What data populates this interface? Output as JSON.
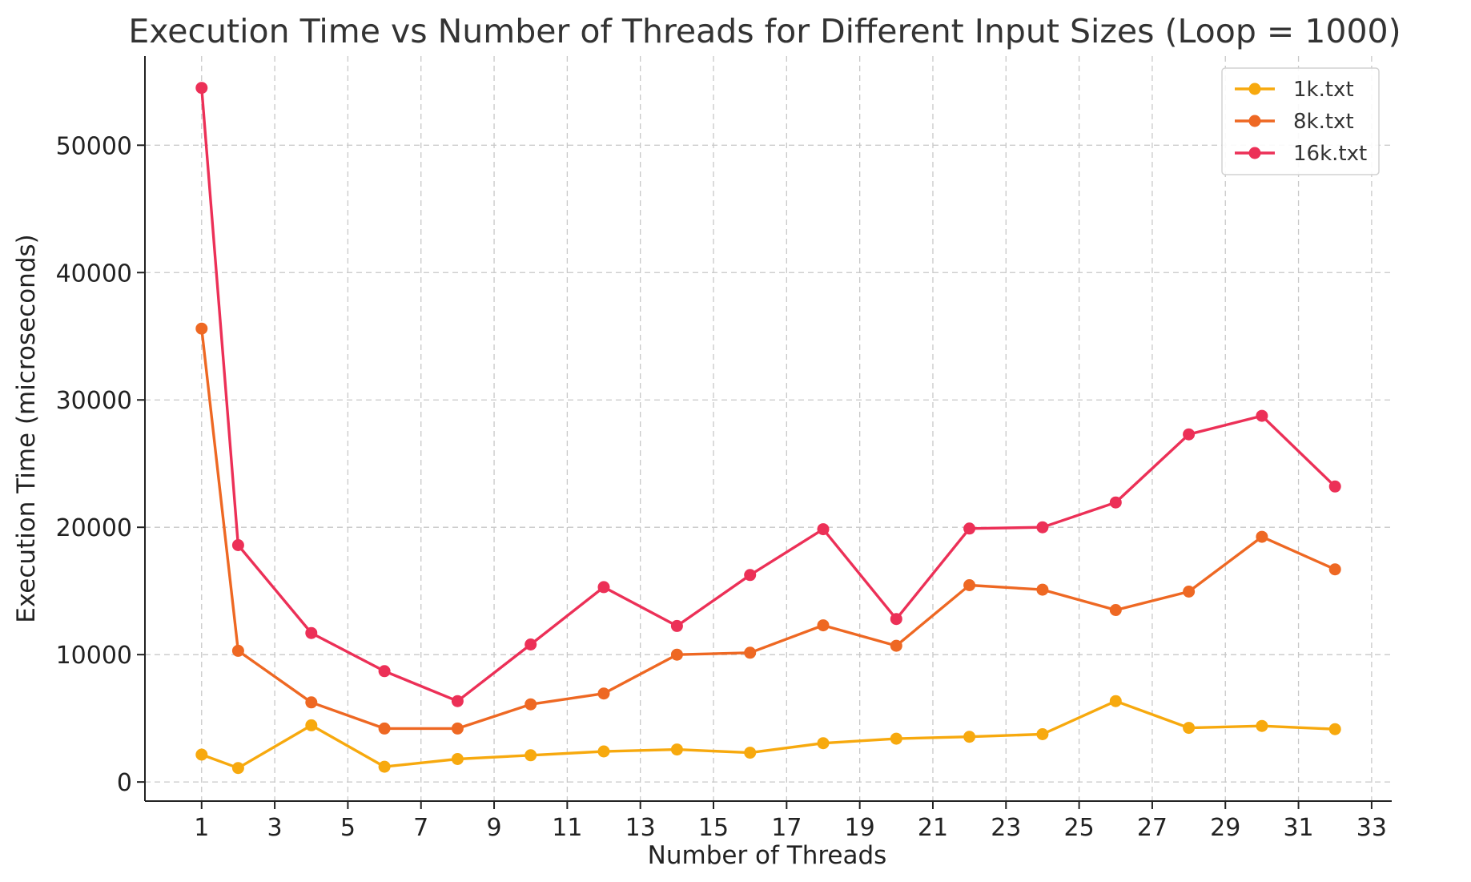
{
  "chart_data": {
    "type": "line",
    "title": "Execution Time vs Number of Threads for Different Input Sizes (Loop = 1000)",
    "xlabel": "Number of Threads",
    "ylabel": "Execution Time (microseconds)",
    "x": [
      1,
      2,
      4,
      6,
      8,
      10,
      12,
      14,
      16,
      18,
      20,
      22,
      24,
      26,
      28,
      30,
      32
    ],
    "xlim": [
      -0.55,
      33.55
    ],
    "ylim": [
      -1500,
      57000
    ],
    "xticks": [
      1,
      3,
      5,
      7,
      9,
      11,
      13,
      15,
      17,
      19,
      21,
      23,
      25,
      27,
      29,
      31,
      33
    ],
    "yticks": [
      0,
      10000,
      20000,
      30000,
      40000,
      50000
    ],
    "grid": true,
    "legend_position": "top-right",
    "series": [
      {
        "name": "1k.txt",
        "color": "#F7A90E",
        "values": [
          2150,
          1100,
          4450,
          1200,
          1800,
          2100,
          2400,
          2550,
          2300,
          3050,
          3400,
          3550,
          3750,
          6350,
          4250,
          4400,
          4150
        ]
      },
      {
        "name": "8k.txt",
        "color": "#EE6823",
        "values": [
          35600,
          10300,
          6250,
          4200,
          4200,
          6100,
          6950,
          10000,
          10150,
          12300,
          10700,
          15450,
          15100,
          13500,
          14950,
          19250,
          16700
        ]
      },
      {
        "name": "16k.txt",
        "color": "#EC3057",
        "values": [
          54500,
          18600,
          11700,
          8700,
          6350,
          10800,
          15300,
          12250,
          16250,
          19850,
          12800,
          19900,
          20000,
          21950,
          27300,
          28750,
          23200
        ]
      }
    ]
  }
}
